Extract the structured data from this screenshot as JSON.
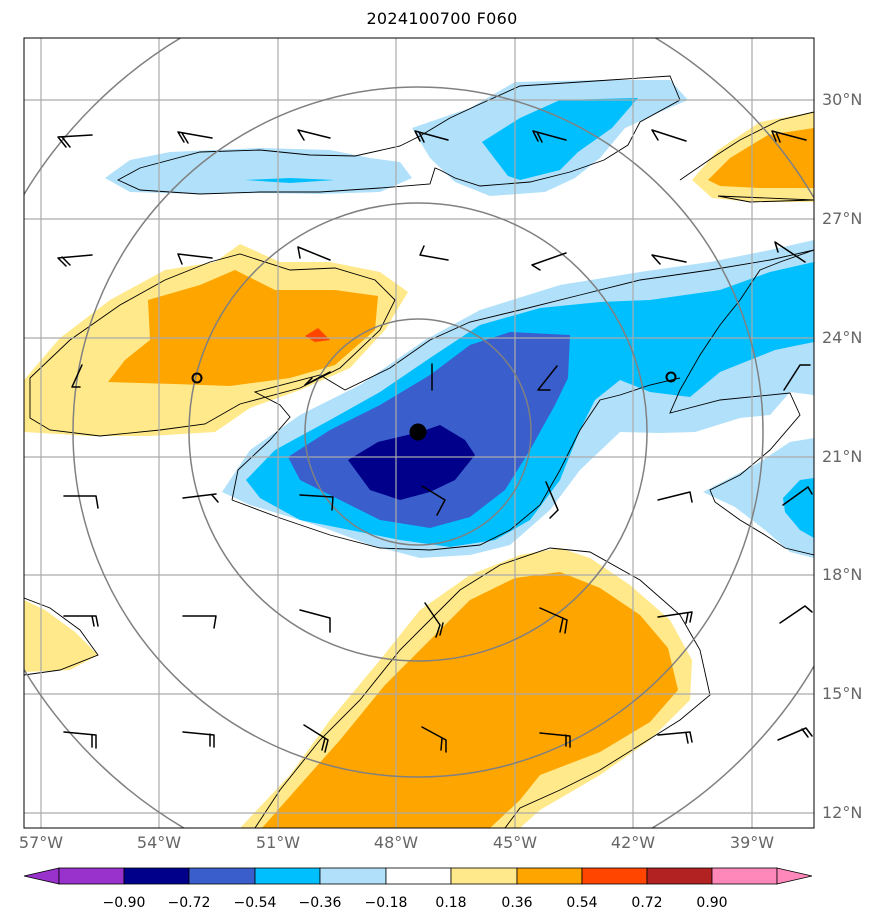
{
  "title": "2024100700 F060",
  "colors": {
    "frame": "#000000",
    "grid": "#aaaaaa",
    "range_rings": "#808080",
    "contour_line": "#000000",
    "barb": "#000000"
  },
  "map": {
    "lat_labels": [
      "30°N",
      "27°N",
      "24°N",
      "21°N",
      "18°N",
      "15°N",
      "12°N"
    ],
    "lon_labels": [
      "57°W",
      "54°W",
      "51°W",
      "48°W",
      "45°W",
      "42°W",
      "39°W"
    ],
    "storm_center": {
      "lat": 21.6,
      "lon": -47.6,
      "marker": "filled-circle"
    },
    "secondary_markers": [
      {
        "lat": 23.0,
        "lon": -53.0,
        "marker": "open-circle"
      },
      {
        "lat": 23.0,
        "lon": -41.0,
        "marker": "open-circle"
      }
    ]
  },
  "colorbar": {
    "labels": [
      "−0.90",
      "−0.72",
      "−0.54",
      "−0.36",
      "−0.18",
      "0.18",
      "0.36",
      "0.54",
      "0.72",
      "0.90"
    ],
    "bins": [
      {
        "range": "< −0.90",
        "color": "#9932cc"
      },
      {
        "range": "−0.90 to −0.72",
        "color": "#00008b"
      },
      {
        "range": "−0.72 to −0.54",
        "color": "#3a5fcd"
      },
      {
        "range": "−0.54 to −0.36",
        "color": "#00bfff"
      },
      {
        "range": "−0.36 to −0.18",
        "color": "#b0e0fa"
      },
      {
        "range": "−0.18 to 0.18",
        "color": "#ffffff"
      },
      {
        "range": "0.18 to 0.36",
        "color": "#ffe98a"
      },
      {
        "range": "0.36 to 0.54",
        "color": "#ffa500"
      },
      {
        "range": "0.54 to 0.72",
        "color": "#ff4500"
      },
      {
        "range": "0.72 to 0.90",
        "color": "#b22222"
      },
      {
        "range": "> 0.90",
        "color": "#ff88bb"
      }
    ]
  }
}
